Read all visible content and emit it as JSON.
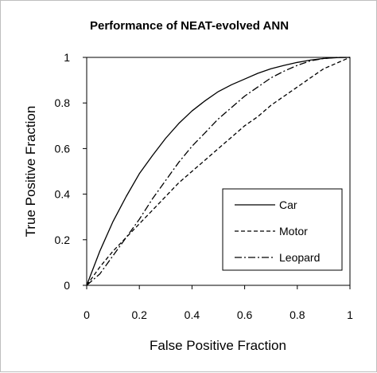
{
  "chart_data": {
    "type": "line",
    "title": "Performance of NEAT-evolved ANN",
    "xlabel": "False Positive Fraction",
    "ylabel": "True Positive Fraction",
    "xlim": [
      0,
      1
    ],
    "ylim": [
      0,
      1
    ],
    "xticks": [
      "0",
      "0.2",
      "0.4",
      "0.6",
      "0.8",
      "1"
    ],
    "yticks": [
      "0",
      "0.2",
      "0.4",
      "0.6",
      "0.8",
      "1"
    ],
    "grid": false,
    "legend_position": "bottom-right",
    "series": [
      {
        "name": "Car",
        "style": "solid",
        "x": [
          0,
          0.05,
          0.1,
          0.15,
          0.2,
          0.25,
          0.3,
          0.35,
          0.4,
          0.45,
          0.5,
          0.55,
          0.6,
          0.65,
          0.7,
          0.75,
          0.8,
          0.85,
          0.9,
          0.95,
          1
        ],
        "y": [
          0,
          0.15,
          0.28,
          0.39,
          0.49,
          0.57,
          0.645,
          0.71,
          0.765,
          0.81,
          0.85,
          0.88,
          0.905,
          0.93,
          0.95,
          0.965,
          0.978,
          0.988,
          0.995,
          0.999,
          1
        ]
      },
      {
        "name": "Motor",
        "style": "dashed",
        "x": [
          0,
          0.05,
          0.1,
          0.15,
          0.2,
          0.25,
          0.3,
          0.35,
          0.4,
          0.45,
          0.5,
          0.55,
          0.6,
          0.65,
          0.7,
          0.75,
          0.8,
          0.85,
          0.9,
          0.95,
          1
        ],
        "y": [
          0,
          0.08,
          0.15,
          0.21,
          0.27,
          0.33,
          0.39,
          0.45,
          0.5,
          0.55,
          0.6,
          0.65,
          0.7,
          0.74,
          0.79,
          0.83,
          0.87,
          0.91,
          0.95,
          0.975,
          1
        ]
      },
      {
        "name": "Leopard",
        "style": "dash-dot",
        "x": [
          0,
          0.05,
          0.1,
          0.15,
          0.2,
          0.25,
          0.3,
          0.35,
          0.4,
          0.45,
          0.5,
          0.55,
          0.6,
          0.65,
          0.7,
          0.75,
          0.8,
          0.85,
          0.9,
          0.95,
          1
        ],
        "y": [
          0,
          0.05,
          0.13,
          0.21,
          0.29,
          0.38,
          0.46,
          0.54,
          0.61,
          0.67,
          0.73,
          0.78,
          0.83,
          0.87,
          0.91,
          0.94,
          0.965,
          0.985,
          0.995,
          1,
          1
        ]
      }
    ]
  }
}
